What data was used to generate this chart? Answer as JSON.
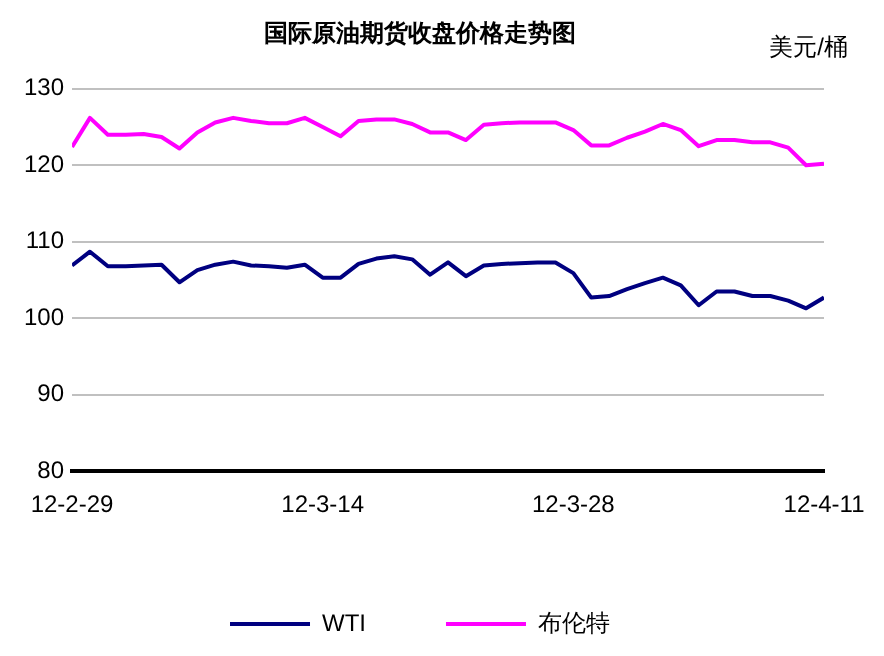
{
  "chart_data": {
    "type": "line",
    "title": "国际原油期货收盘价格走势图",
    "ylabel": "美元/桶",
    "x": [
      "--02-29",
      "--03-01",
      "--03-02",
      "--03-03",
      "--03-04",
      "--03-05",
      "--03-06",
      "--03-07",
      "--03-08",
      "--03-09",
      "--03-10",
      "--03-11",
      "--03-12",
      "--03-13",
      "--03-14",
      "--03-15",
      "--03-16",
      "--03-17",
      "--03-18",
      "--03-19",
      "--03-20",
      "--03-21",
      "--03-22",
      "--03-23",
      "--03-24",
      "--03-25",
      "--03-26",
      "--03-27",
      "--03-28",
      "--03-29",
      "--03-30",
      "--03-31",
      "--04-01",
      "--04-02",
      "--04-03",
      "--04-04",
      "--04-05",
      "--04-06",
      "--04-07",
      "--04-08",
      "--04-09",
      "--04-10",
      "--04-11"
    ],
    "series": [
      {
        "name": "WTI",
        "color": "#000080",
        "values": [
          106.9,
          108.7,
          106.8,
          106.8,
          106.9,
          107.0,
          104.7,
          106.3,
          107.0,
          107.4,
          106.9,
          106.8,
          106.6,
          107.0,
          105.3,
          105.3,
          107.1,
          107.8,
          108.1,
          107.7,
          105.7,
          107.3,
          105.5,
          106.9,
          107.1,
          107.2,
          107.3,
          107.3,
          105.9,
          102.7,
          102.9,
          103.8,
          104.6,
          105.3,
          104.3,
          101.7,
          103.5,
          103.5,
          102.9,
          102.9,
          102.3,
          101.3,
          102.7
        ]
      },
      {
        "name": "布伦特",
        "color": "#ff00ff",
        "values": [
          122.4,
          126.2,
          124.0,
          124.0,
          124.1,
          123.7,
          122.2,
          124.3,
          125.6,
          126.2,
          125.8,
          125.5,
          125.5,
          126.2,
          125.0,
          123.8,
          125.8,
          126.0,
          126.0,
          125.4,
          124.3,
          124.3,
          123.3,
          125.3,
          125.5,
          125.6,
          125.6,
          125.6,
          124.6,
          122.6,
          122.6,
          123.6,
          124.4,
          125.4,
          124.6,
          122.5,
          123.3,
          123.3,
          123.0,
          123.0,
          122.3,
          120.0,
          120.2
        ]
      }
    ],
    "xlim": [
      "--02-29",
      "--04-11"
    ],
    "xticks": [
      {
        "value": "--02-29",
        "label": "12-2-29"
      },
      {
        "value": "--03-14",
        "label": "12-3-14"
      },
      {
        "value": "--03-28",
        "label": "12-3-28"
      },
      {
        "value": "--04-11",
        "label": "12-4-11"
      }
    ],
    "ylim": [
      80,
      130
    ],
    "yticks": [
      80,
      90,
      100,
      110,
      120,
      130
    ],
    "grid": "y",
    "legend": "bottom",
    "marker": "none",
    "line_style": "solid"
  }
}
